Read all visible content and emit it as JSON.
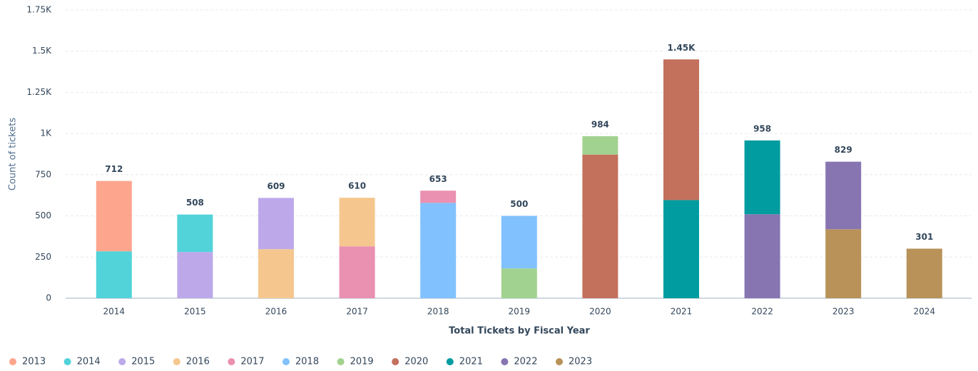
{
  "chart_data": {
    "type": "bar",
    "stacked": true,
    "y_label": "Count of tickets",
    "x_label": "Total Tickets by Fiscal Year",
    "categories": [
      "2014",
      "2015",
      "2016",
      "2017",
      "2018",
      "2019",
      "2020",
      "2021",
      "2022",
      "2023",
      "2024"
    ],
    "series": [
      {
        "name": "2013",
        "color": "#fea58e",
        "values": [
          427,
          null,
          null,
          null,
          null,
          null,
          null,
          null,
          null,
          null,
          null
        ]
      },
      {
        "name": "2014",
        "color": "#51d3d9",
        "values": [
          285,
          227,
          null,
          null,
          null,
          null,
          null,
          null,
          null,
          null,
          null
        ]
      },
      {
        "name": "2015",
        "color": "#bda9ea",
        "values": [
          null,
          281,
          311,
          null,
          null,
          null,
          null,
          null,
          null,
          null,
          null
        ]
      },
      {
        "name": "2016",
        "color": "#f5c78e",
        "values": [
          null,
          null,
          298,
          295,
          null,
          null,
          null,
          null,
          null,
          null,
          null
        ]
      },
      {
        "name": "2017",
        "color": "#ea90b1",
        "values": [
          null,
          null,
          null,
          315,
          74,
          null,
          null,
          null,
          null,
          null,
          null
        ]
      },
      {
        "name": "2018",
        "color": "#81c1fd",
        "values": [
          null,
          null,
          null,
          null,
          579,
          319,
          null,
          null,
          null,
          null,
          null
        ]
      },
      {
        "name": "2019",
        "color": "#a2d28f",
        "values": [
          null,
          null,
          null,
          null,
          null,
          181,
          112,
          null,
          null,
          null,
          null
        ]
      },
      {
        "name": "2020",
        "color": "#c3705c",
        "values": [
          null,
          null,
          null,
          null,
          null,
          null,
          872,
          854,
          null,
          null,
          null
        ]
      },
      {
        "name": "2021",
        "color": "#009ca0",
        "values": [
          null,
          null,
          null,
          null,
          null,
          null,
          null,
          596,
          448,
          null,
          null
        ]
      },
      {
        "name": "2022",
        "color": "#8775b2",
        "values": [
          null,
          null,
          null,
          null,
          null,
          null,
          null,
          null,
          510,
          410,
          null
        ]
      },
      {
        "name": "2023",
        "color": "#b89259",
        "values": [
          null,
          null,
          null,
          null,
          null,
          null,
          null,
          null,
          null,
          419,
          301
        ]
      }
    ],
    "totals": [
      712,
      508,
      609,
      610,
      653,
      500,
      984,
      1450,
      958,
      829,
      301
    ],
    "totals_labels": [
      "712",
      "508",
      "609",
      "610",
      "653",
      "500",
      "984",
      "1.45K",
      "958",
      "829",
      "301"
    ],
    "ylim": [
      0,
      1750
    ],
    "yticks": [
      0,
      250,
      500,
      750,
      {
        "value": 1000,
        "label": "1K"
      },
      {
        "value": 1250,
        "label": "1.25K"
      },
      {
        "value": 1500,
        "label": "1.5K"
      },
      {
        "value": 1750,
        "label": "1.75K"
      }
    ],
    "grid": true,
    "legend": "bottom"
  }
}
